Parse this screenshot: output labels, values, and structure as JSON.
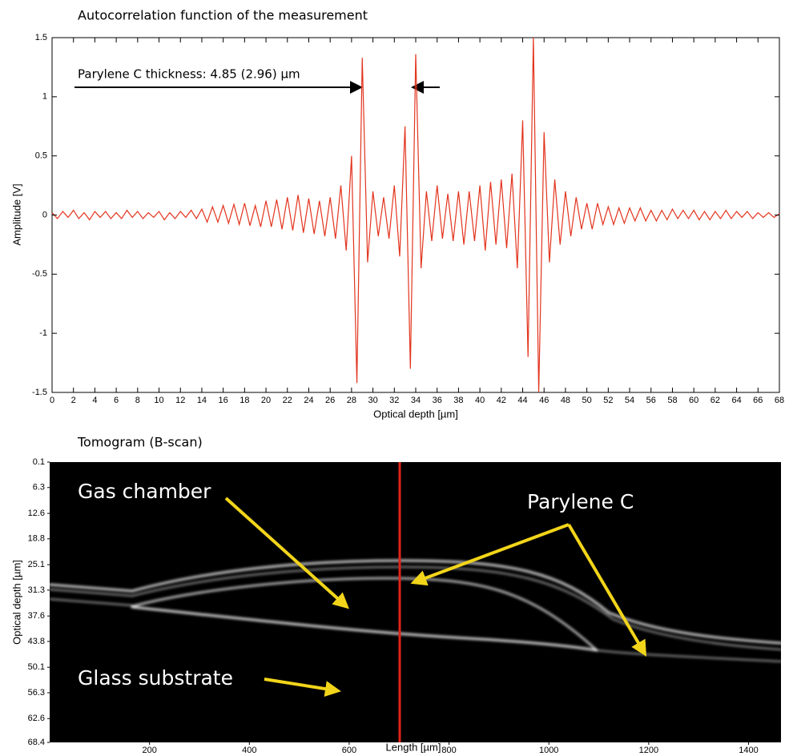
{
  "chart_data": [
    {
      "type": "line",
      "title": "Autocorrelation function of the measurement",
      "xlabel": "Optical depth [µm]",
      "ylabel": "Amplitude [V]",
      "annotation": "Parylene C thickness: 4.85 (2.96) µm",
      "x": [
        0,
        0.5,
        1,
        1.5,
        2,
        2.5,
        3,
        3.5,
        4,
        4.5,
        5,
        5.5,
        6,
        6.5,
        7,
        7.5,
        8,
        8.5,
        9,
        9.5,
        10,
        10.5,
        11,
        11.5,
        12,
        12.5,
        13,
        13.5,
        14,
        14.5,
        15,
        15.5,
        16,
        16.5,
        17,
        17.5,
        18,
        18.5,
        19,
        19.5,
        20,
        20.5,
        21,
        21.5,
        22,
        22.5,
        23,
        23.5,
        24,
        24.5,
        25,
        25.5,
        26,
        26.5,
        27,
        27.5,
        28,
        28.5,
        29,
        29.5,
        30,
        30.5,
        31,
        31.5,
        32,
        32.5,
        33,
        33.5,
        34,
        34.5,
        35,
        35.5,
        36,
        36.5,
        37,
        37.5,
        38,
        38.5,
        39,
        39.5,
        40,
        40.5,
        41,
        41.5,
        42,
        42.5,
        43,
        43.5,
        44,
        44.5,
        45,
        45.5,
        46,
        46.5,
        47,
        47.5,
        48,
        48.5,
        49,
        49.5,
        50,
        50.5,
        51,
        51.5,
        52,
        52.5,
        53,
        53.5,
        54,
        54.5,
        55,
        55.5,
        56,
        56.5,
        57,
        57.5,
        58,
        58.5,
        59,
        59.5,
        60,
        60.5,
        61,
        61.5,
        62,
        62.5,
        63,
        63.5,
        64,
        64.5,
        65,
        65.5,
        66,
        66.5,
        67,
        67.5,
        68
      ],
      "series": [
        {
          "color": "#e2341d",
          "values": [
            0.02,
            -0.03,
            0.03,
            -0.02,
            0.04,
            -0.03,
            0.02,
            -0.04,
            0.03,
            -0.02,
            0.03,
            -0.03,
            0.02,
            -0.03,
            0.04,
            -0.02,
            0.03,
            -0.03,
            0.02,
            -0.02,
            0.03,
            -0.04,
            0.02,
            -0.03,
            0.03,
            -0.02,
            0.04,
            -0.03,
            0.05,
            -0.06,
            0.07,
            -0.06,
            0.08,
            -0.07,
            0.09,
            -0.08,
            0.1,
            -0.09,
            0.08,
            -0.1,
            0.12,
            -0.1,
            0.13,
            -0.12,
            0.15,
            -0.13,
            0.17,
            -0.15,
            0.14,
            -0.16,
            0.12,
            -0.18,
            0.15,
            -0.2,
            0.25,
            -0.3,
            0.5,
            -1.42,
            1.33,
            -0.4,
            0.2,
            -0.18,
            0.15,
            -0.2,
            0.25,
            -0.35,
            0.75,
            -1.3,
            1.36,
            -0.45,
            0.2,
            -0.22,
            0.25,
            -0.2,
            0.18,
            -0.22,
            0.2,
            -0.25,
            0.2,
            -0.22,
            0.25,
            -0.3,
            0.28,
            -0.25,
            0.3,
            -0.28,
            0.35,
            -0.45,
            0.8,
            -1.2,
            1.5,
            -1.5,
            0.7,
            -0.4,
            0.3,
            -0.25,
            0.2,
            -0.18,
            0.15,
            -0.12,
            0.1,
            -0.12,
            0.1,
            -0.08,
            0.07,
            -0.08,
            0.06,
            -0.07,
            0.06,
            -0.05,
            0.06,
            -0.05,
            0.04,
            -0.05,
            0.04,
            -0.04,
            0.05,
            -0.03,
            0.04,
            -0.03,
            0.04,
            -0.04,
            0.03,
            -0.04,
            0.03,
            -0.03,
            0.04,
            -0.03,
            0.03,
            -0.02,
            0.03,
            -0.03,
            0.02,
            -0.02,
            0.02,
            -0.02,
            0.01
          ]
        }
      ],
      "xlim": [
        0,
        68
      ],
      "ylim": [
        -1.5,
        1.5
      ],
      "xticks": [
        0,
        2,
        4,
        6,
        8,
        10,
        12,
        14,
        16,
        18,
        20,
        22,
        24,
        26,
        28,
        30,
        32,
        34,
        36,
        38,
        40,
        42,
        44,
        46,
        48,
        50,
        52,
        54,
        56,
        58,
        60,
        62,
        64,
        66,
        68
      ],
      "yticks": [
        -1.5,
        -1,
        -0.5,
        0,
        0.5,
        1,
        1.5
      ]
    },
    {
      "type": "image",
      "title": "Tomogram (B-scan)",
      "xlabel": "Length [µm]",
      "ylabel": "Optical depth [µm]",
      "annotations": [
        "Gas chamber",
        "Parylene C",
        "Glass substrate"
      ],
      "xlim": [
        0,
        1465
      ],
      "ylim": [
        68.4,
        0.1
      ],
      "xticks": [
        200,
        400,
        600,
        800,
        1000,
        1200,
        1400
      ],
      "yticks": [
        0.1,
        6.3,
        12.6,
        18.8,
        25.1,
        31.3,
        37.6,
        43.8,
        50.1,
        56.3,
        62.6,
        68.4
      ]
    }
  ]
}
